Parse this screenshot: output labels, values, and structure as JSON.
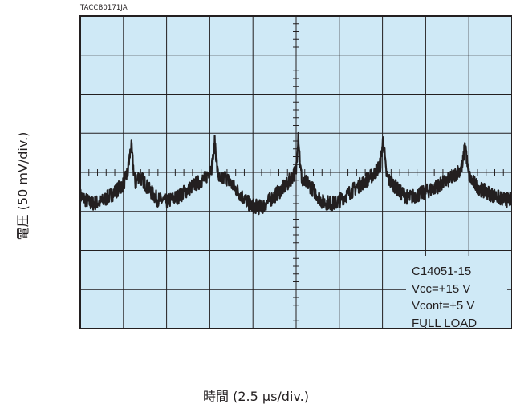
{
  "doc_id": "TACCB0171JA",
  "chart_data": {
    "type": "line",
    "title": "",
    "xlabel": "時間 (2.5 µs/div.)",
    "ylabel": "電圧 (50 mV/div.)",
    "x_divisions": 10,
    "y_divisions": 8,
    "grid": true,
    "background_color": "#cfe9f6",
    "trace_color": "#231f20",
    "grid_color": "#231f20",
    "annotations": [
      "C14051-15",
      "Vcc=+15 V",
      "Vcont=+5 V",
      "FULL LOAD"
    ],
    "series": [
      {
        "values_x_div": [
          0,
          0.25,
          0.5,
          0.75,
          1.0,
          1.1,
          1.18,
          1.22,
          1.28,
          1.35,
          1.45,
          1.6,
          1.8,
          2.0,
          2.3,
          2.6,
          2.9,
          3.05,
          3.12,
          3.18,
          3.25,
          3.35,
          3.5,
          3.7,
          3.95,
          4.2,
          4.5,
          4.8,
          5.0,
          5.05,
          5.1,
          5.15,
          5.25,
          5.4,
          5.6,
          5.9,
          6.2,
          6.5,
          6.8,
          6.95,
          7.02,
          7.08,
          7.15,
          7.25,
          7.4,
          7.6,
          7.9,
          8.2,
          8.6,
          8.85,
          8.92,
          8.98,
          9.05,
          9.15,
          9.3,
          9.5,
          9.8,
          10.0
        ],
        "values_y_div": [
          -0.6,
          -0.8,
          -0.75,
          -0.55,
          -0.3,
          0.0,
          0.7,
          0.2,
          -0.3,
          -0.1,
          -0.2,
          -0.45,
          -0.7,
          -0.75,
          -0.6,
          -0.35,
          -0.15,
          0.15,
          0.8,
          0.0,
          -0.25,
          -0.1,
          -0.3,
          -0.55,
          -0.85,
          -0.9,
          -0.6,
          -0.3,
          0.05,
          1.0,
          0.1,
          -0.3,
          -0.25,
          -0.45,
          -0.75,
          -0.8,
          -0.55,
          -0.3,
          -0.05,
          0.2,
          0.9,
          0.0,
          -0.2,
          -0.3,
          -0.5,
          -0.65,
          -0.55,
          -0.4,
          -0.15,
          0.15,
          0.75,
          0.0,
          -0.2,
          -0.3,
          -0.45,
          -0.55,
          -0.7,
          -0.7
        ]
      }
    ]
  }
}
